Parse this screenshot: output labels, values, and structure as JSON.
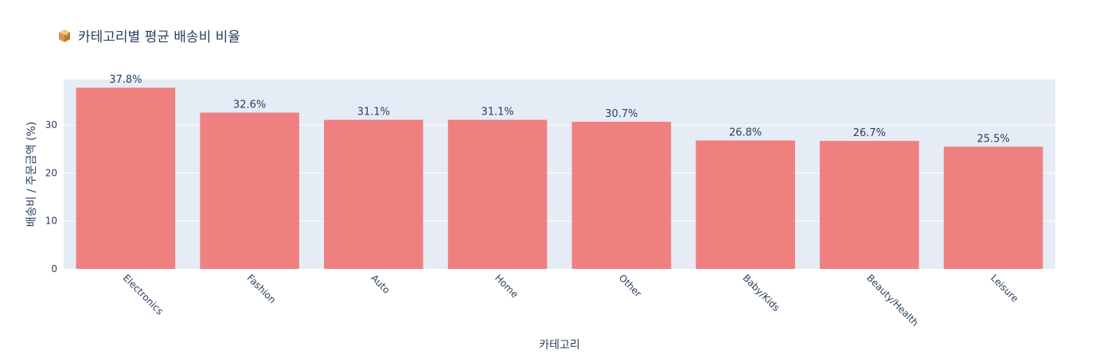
{
  "chart_data": {
    "type": "bar",
    "title": "카테고리별 평균 배송비 비율",
    "title_icon": "package-icon",
    "xlabel": "카테고리",
    "ylabel": "배송비 / 주문금액 (%)",
    "categories": [
      "Electronics",
      "Fashion",
      "Auto",
      "Home",
      "Other",
      "Baby/Kids",
      "Beauty/Health",
      "Leisure"
    ],
    "values": [
      37.8,
      32.6,
      31.1,
      31.1,
      30.7,
      26.8,
      26.7,
      25.5
    ],
    "data_labels": [
      "37.8%",
      "32.6%",
      "31.1%",
      "31.1%",
      "30.7%",
      "26.8%",
      "26.7%",
      "25.5%"
    ],
    "yticks": [
      0,
      10,
      20,
      30
    ],
    "ylim": [
      0,
      39.5
    ],
    "grid": true,
    "colors": {
      "bar": "#f08080",
      "plot_bg": "#e5ecf6",
      "grid": "#ffffff",
      "text": "#2a3f5f"
    }
  }
}
